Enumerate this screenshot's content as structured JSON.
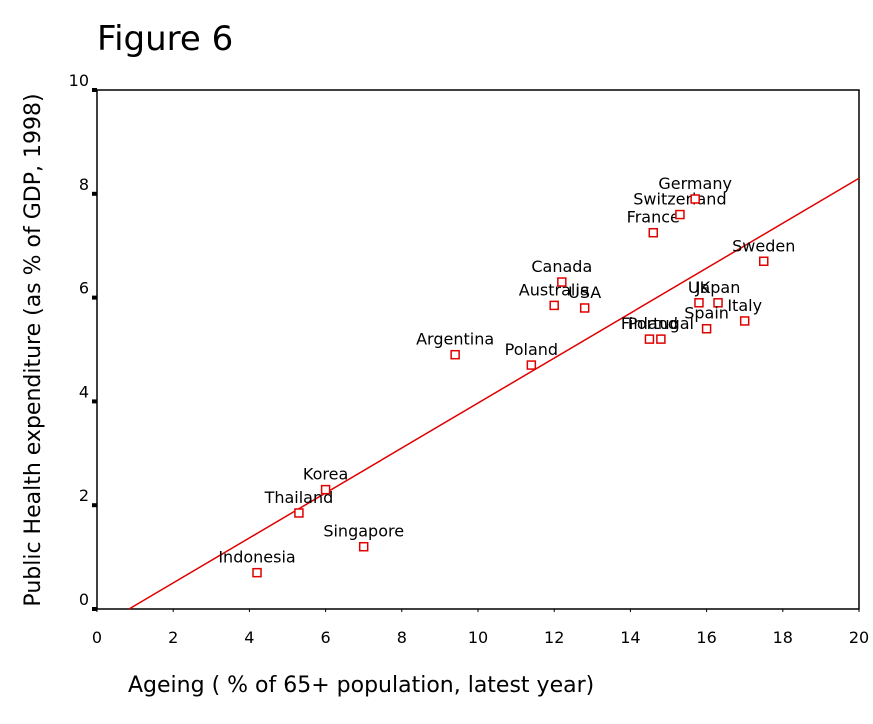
{
  "chart_data": {
    "type": "scatter",
    "title": "Figure 6",
    "x_label": "Ageing ( % of 65+ population, latest year)",
    "y_label": "Public Health expenditure (as % of GDP, 1998)",
    "labels": [
      "Indonesia",
      "Thailand",
      "Korea",
      "Singapore",
      "Argentina",
      "Poland",
      "Australia",
      "Canada",
      "USA",
      "France",
      "Switzerland",
      "Germany",
      "Finland",
      "Portugal",
      "UK",
      "Japan",
      "Spain",
      "Italy",
      "Sweden"
    ],
    "x": [
      4.2,
      5.3,
      6.0,
      7.0,
      9.4,
      11.4,
      12.0,
      12.2,
      12.8,
      14.6,
      15.3,
      15.7,
      14.5,
      14.8,
      15.8,
      16.3,
      16.0,
      17.0,
      17.5
    ],
    "values": [
      0.7,
      1.85,
      2.3,
      1.2,
      4.9,
      4.7,
      5.85,
      6.3,
      5.8,
      7.25,
      7.6,
      7.9,
      5.2,
      5.2,
      5.9,
      5.9,
      5.4,
      5.55,
      6.7
    ],
    "color": "#e00000",
    "trend_line": {
      "x": [
        0.84,
        20
      ],
      "y": [
        0,
        8.3
      ],
      "color": "#e00000"
    },
    "xlim": [
      0,
      20
    ],
    "xticks": [
      0,
      2,
      4,
      6,
      8,
      10,
      12,
      14,
      16,
      18,
      20
    ],
    "ylim": [
      0,
      10
    ],
    "yticks": [
      0,
      2,
      4,
      6,
      8,
      10
    ]
  }
}
